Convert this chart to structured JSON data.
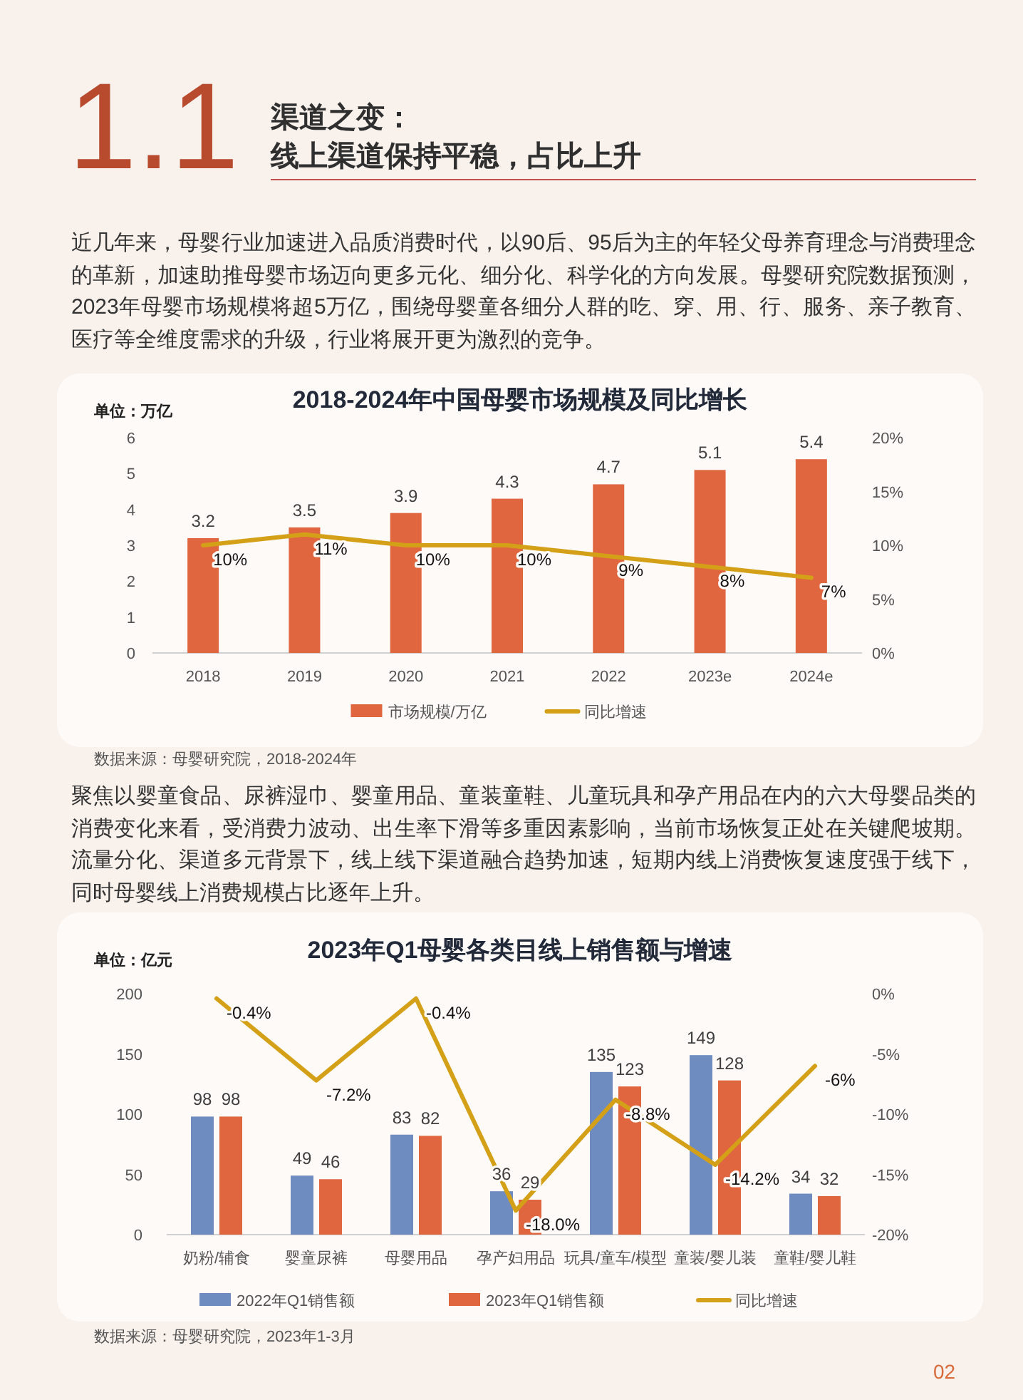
{
  "chart_data": [
    {
      "type": "other",
      "annotations": [
        "1.1",
        "渠道之变：",
        "线上渠道保持平稳，占比上升",
        "近几年来，母婴行业加速进入品质消费时代，以90后、95后为主的年轻父母养育理念与消费理念的革新，加速助推母婴市场迈向更多元化、细分化、科学化的方向发展。母婴研究院数据预测，2023年母婴市场规模将超5万亿，围绕母婴童各细分人群的吃、穿、用、行、服务、亲子教育、医疗等全维度需求的升级，行业将展开更为激烈的竞争。"
      ]
    },
    {
      "type": "bar",
      "title": "2018-2024年中国母婴市场规模及同比增长",
      "ylabel": "单位：万亿",
      "categories": [
        "2018",
        "2019",
        "2020",
        "2021",
        "2022",
        "2023e",
        "2024e"
      ],
      "series": [
        {
          "name": "市场规模/万亿",
          "color": "#e0663f",
          "values": [
            3.2,
            3.5,
            3.9,
            4.3,
            4.7,
            5.1,
            5.4
          ],
          "value_labels": [
            "3.2",
            "3.5",
            "3.9",
            "4.3",
            "4.7",
            "5.1",
            "5.4"
          ]
        },
        {
          "name": "同比增速",
          "type": "line",
          "axis": "y2",
          "color": "#d4a017",
          "values": [
            10,
            11,
            10,
            10,
            9,
            8,
            7
          ],
          "value_labels": [
            "10%",
            "11%",
            "10%",
            "10%",
            "9%",
            "8%",
            "7%"
          ]
        }
      ],
      "ylim": [
        0,
        6
      ],
      "yticks": [
        0,
        1,
        2,
        3,
        4,
        5,
        6
      ],
      "y2lim": [
        0,
        20
      ],
      "y2ticks": [
        {
          "value": 0,
          "label": "0%"
        },
        {
          "value": 5,
          "label": "5%"
        },
        {
          "value": 10,
          "label": "10%"
        },
        {
          "value": 15,
          "label": "15%"
        },
        {
          "value": 20,
          "label": "20%"
        }
      ],
      "legend": "bottom",
      "marker": "none",
      "annotations": [
        "数据来源：母婴研究院，2018-2024年"
      ]
    },
    {
      "type": "other",
      "annotations": [
        "聚焦以婴童食品、尿裤湿巾、婴童用品、童装童鞋、儿童玩具和孕产用品在内的六大母婴品类的消费变化来看，受消费力波动、出生率下滑等多重因素影响，当前市场恢复正处在关键爬坡期。流量分化、渠道多元背景下，线上线下渠道融合趋势加速，短期内线上消费恢复速度强于线下，同时母婴线上消费规模占比逐年上升。"
      ]
    },
    {
      "type": "bar",
      "title": "2023年Q1母婴各类目线上销售额与增速",
      "ylabel": "单位：亿元",
      "categories": [
        "奶粉/辅食",
        "婴童尿裤",
        "母婴用品",
        "孕产妇用品",
        "玩具/童车/模型",
        "童装/婴儿装",
        "童鞋/婴儿鞋"
      ],
      "series": [
        {
          "name": "2022年Q1销售额",
          "color": "#6f8cc0",
          "values": [
            98,
            49,
            83,
            36,
            135,
            149,
            34
          ],
          "value_labels": [
            "98",
            "49",
            "83",
            "36",
            "135",
            "149",
            "34"
          ]
        },
        {
          "name": "2023年Q1销售额",
          "color": "#e0663f",
          "values": [
            98,
            46,
            82,
            29,
            123,
            128,
            32
          ],
          "value_labels": [
            "98",
            "46",
            "82",
            "29",
            "123",
            "128",
            "32"
          ]
        },
        {
          "name": "同比增速",
          "type": "line",
          "axis": "y2",
          "color": "#d4a017",
          "values": [
            -0.4,
            -7.2,
            -0.4,
            -18.0,
            -8.8,
            -14.2,
            -6
          ],
          "value_labels": [
            "-0.4%",
            "-7.2%",
            "-0.4%",
            "-18.0%",
            "-8.8%",
            "-14.2%",
            "-6%"
          ]
        }
      ],
      "ylim": [
        0,
        200
      ],
      "yticks": [
        0,
        50,
        100,
        150,
        200
      ],
      "y2lim": [
        -20,
        0
      ],
      "y2ticks": [
        {
          "value": -20,
          "label": "-20%"
        },
        {
          "value": -15,
          "label": "-15%"
        },
        {
          "value": -10,
          "label": "-10%"
        },
        {
          "value": -5,
          "label": "-5%"
        },
        {
          "value": 0,
          "label": "0%"
        }
      ],
      "legend": "bottom",
      "marker": "none",
      "annotations": [
        "数据来源：母婴研究院，2023年1-3月",
        "02"
      ]
    }
  ]
}
